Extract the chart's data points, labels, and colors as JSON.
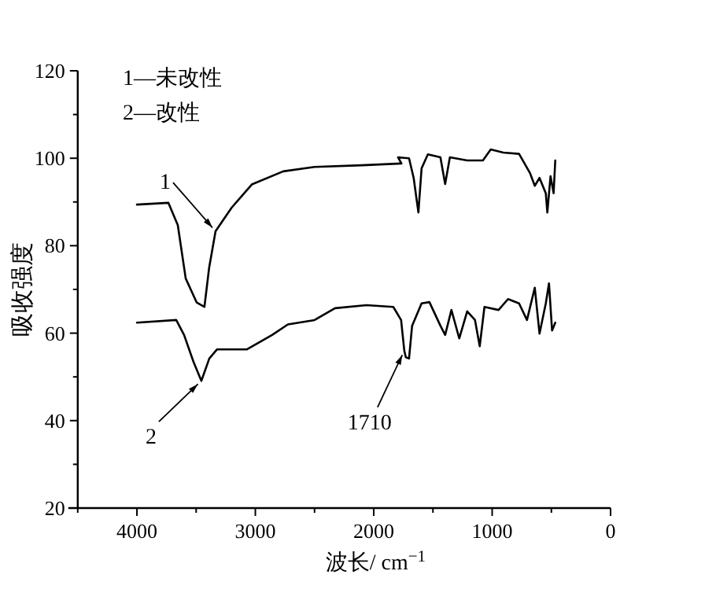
{
  "chart_data": {
    "type": "line",
    "xlabel": "波长/ cm$^{−1}$",
    "ylabel": "吸收强度",
    "xlim": [
      4500,
      0
    ],
    "xticks": [
      {
        "value": 4500,
        "label": null
      },
      4000,
      {
        "value": 3500,
        "label": null
      },
      3000,
      {
        "value": 2500,
        "label": null
      },
      2000,
      {
        "value": 1500,
        "label": null
      },
      1000,
      {
        "value": 500,
        "label": null
      },
      0
    ],
    "ylim": [
      20,
      120
    ],
    "yticks": [
      20,
      {
        "value": 30,
        "label": null
      },
      40,
      {
        "value": 50,
        "label": null
      },
      60,
      {
        "value": 70,
        "label": null
      },
      80,
      {
        "value": 90,
        "label": null
      },
      100,
      {
        "value": 110,
        "label": null
      },
      120
    ],
    "grid": false,
    "marker": "none",
    "line_style": "solid",
    "series": [
      {
        "color": "#000000",
        "x": [
          4000,
          3734,
          3655,
          3588,
          3495,
          3430,
          3390,
          3336,
          3200,
          3030,
          2765,
          2500,
          2100,
          1766,
          1795,
          1702,
          1663,
          1623,
          1596,
          1543,
          1437,
          1397,
          1357,
          1211,
          1078,
          1012,
          906,
          773,
          680,
          640,
          600,
          547,
          534,
          507,
          481,
          467
        ],
        "values": [
          89.4,
          89.8,
          84.7,
          72.5,
          67,
          66,
          75,
          83.3,
          88.7,
          94,
          97,
          98,
          98.4,
          98.8,
          100.2,
          100,
          95.5,
          87.6,
          97.7,
          100.9,
          100.2,
          94.1,
          100.2,
          99.5,
          99.5,
          102,
          101.3,
          101,
          96.6,
          93.7,
          95.5,
          92,
          87.6,
          95.9,
          92,
          99.5
        ]
      },
      {
        "color": "#000000",
        "x": [
          4000,
          3668,
          3602,
          3522,
          3456,
          3389,
          3323,
          3070,
          2858,
          2725,
          2500,
          2327,
          2061,
          1835,
          1769,
          1742,
          1729,
          1702,
          1676,
          1596,
          1530,
          1437,
          1397,
          1344,
          1278,
          1211,
          1145,
          1105,
          1065,
          946,
          866,
          773,
          706,
          640,
          600,
          547,
          520,
          494,
          467
        ],
        "values": [
          62.4,
          63,
          59.6,
          53.4,
          49.1,
          54.2,
          56.3,
          56.3,
          59.6,
          62,
          63,
          65.7,
          66.4,
          66,
          63,
          56,
          54.5,
          54.2,
          61.7,
          66.8,
          67.1,
          61.7,
          59.6,
          65.3,
          58.8,
          65,
          63,
          57,
          66,
          65.3,
          67.8,
          66.8,
          63,
          70.4,
          59.9,
          66.8,
          71.4,
          60.6,
          62.4
        ]
      }
    ],
    "annotations": [
      "1—未改性",
      "2—改性",
      {
        "text": "1",
        "x": 3336,
        "y": 83.3
      },
      {
        "text": "2",
        "x": 3456,
        "y": 49.1
      },
      {
        "text": "1710",
        "x": 1742,
        "y": 56
      }
    ]
  }
}
